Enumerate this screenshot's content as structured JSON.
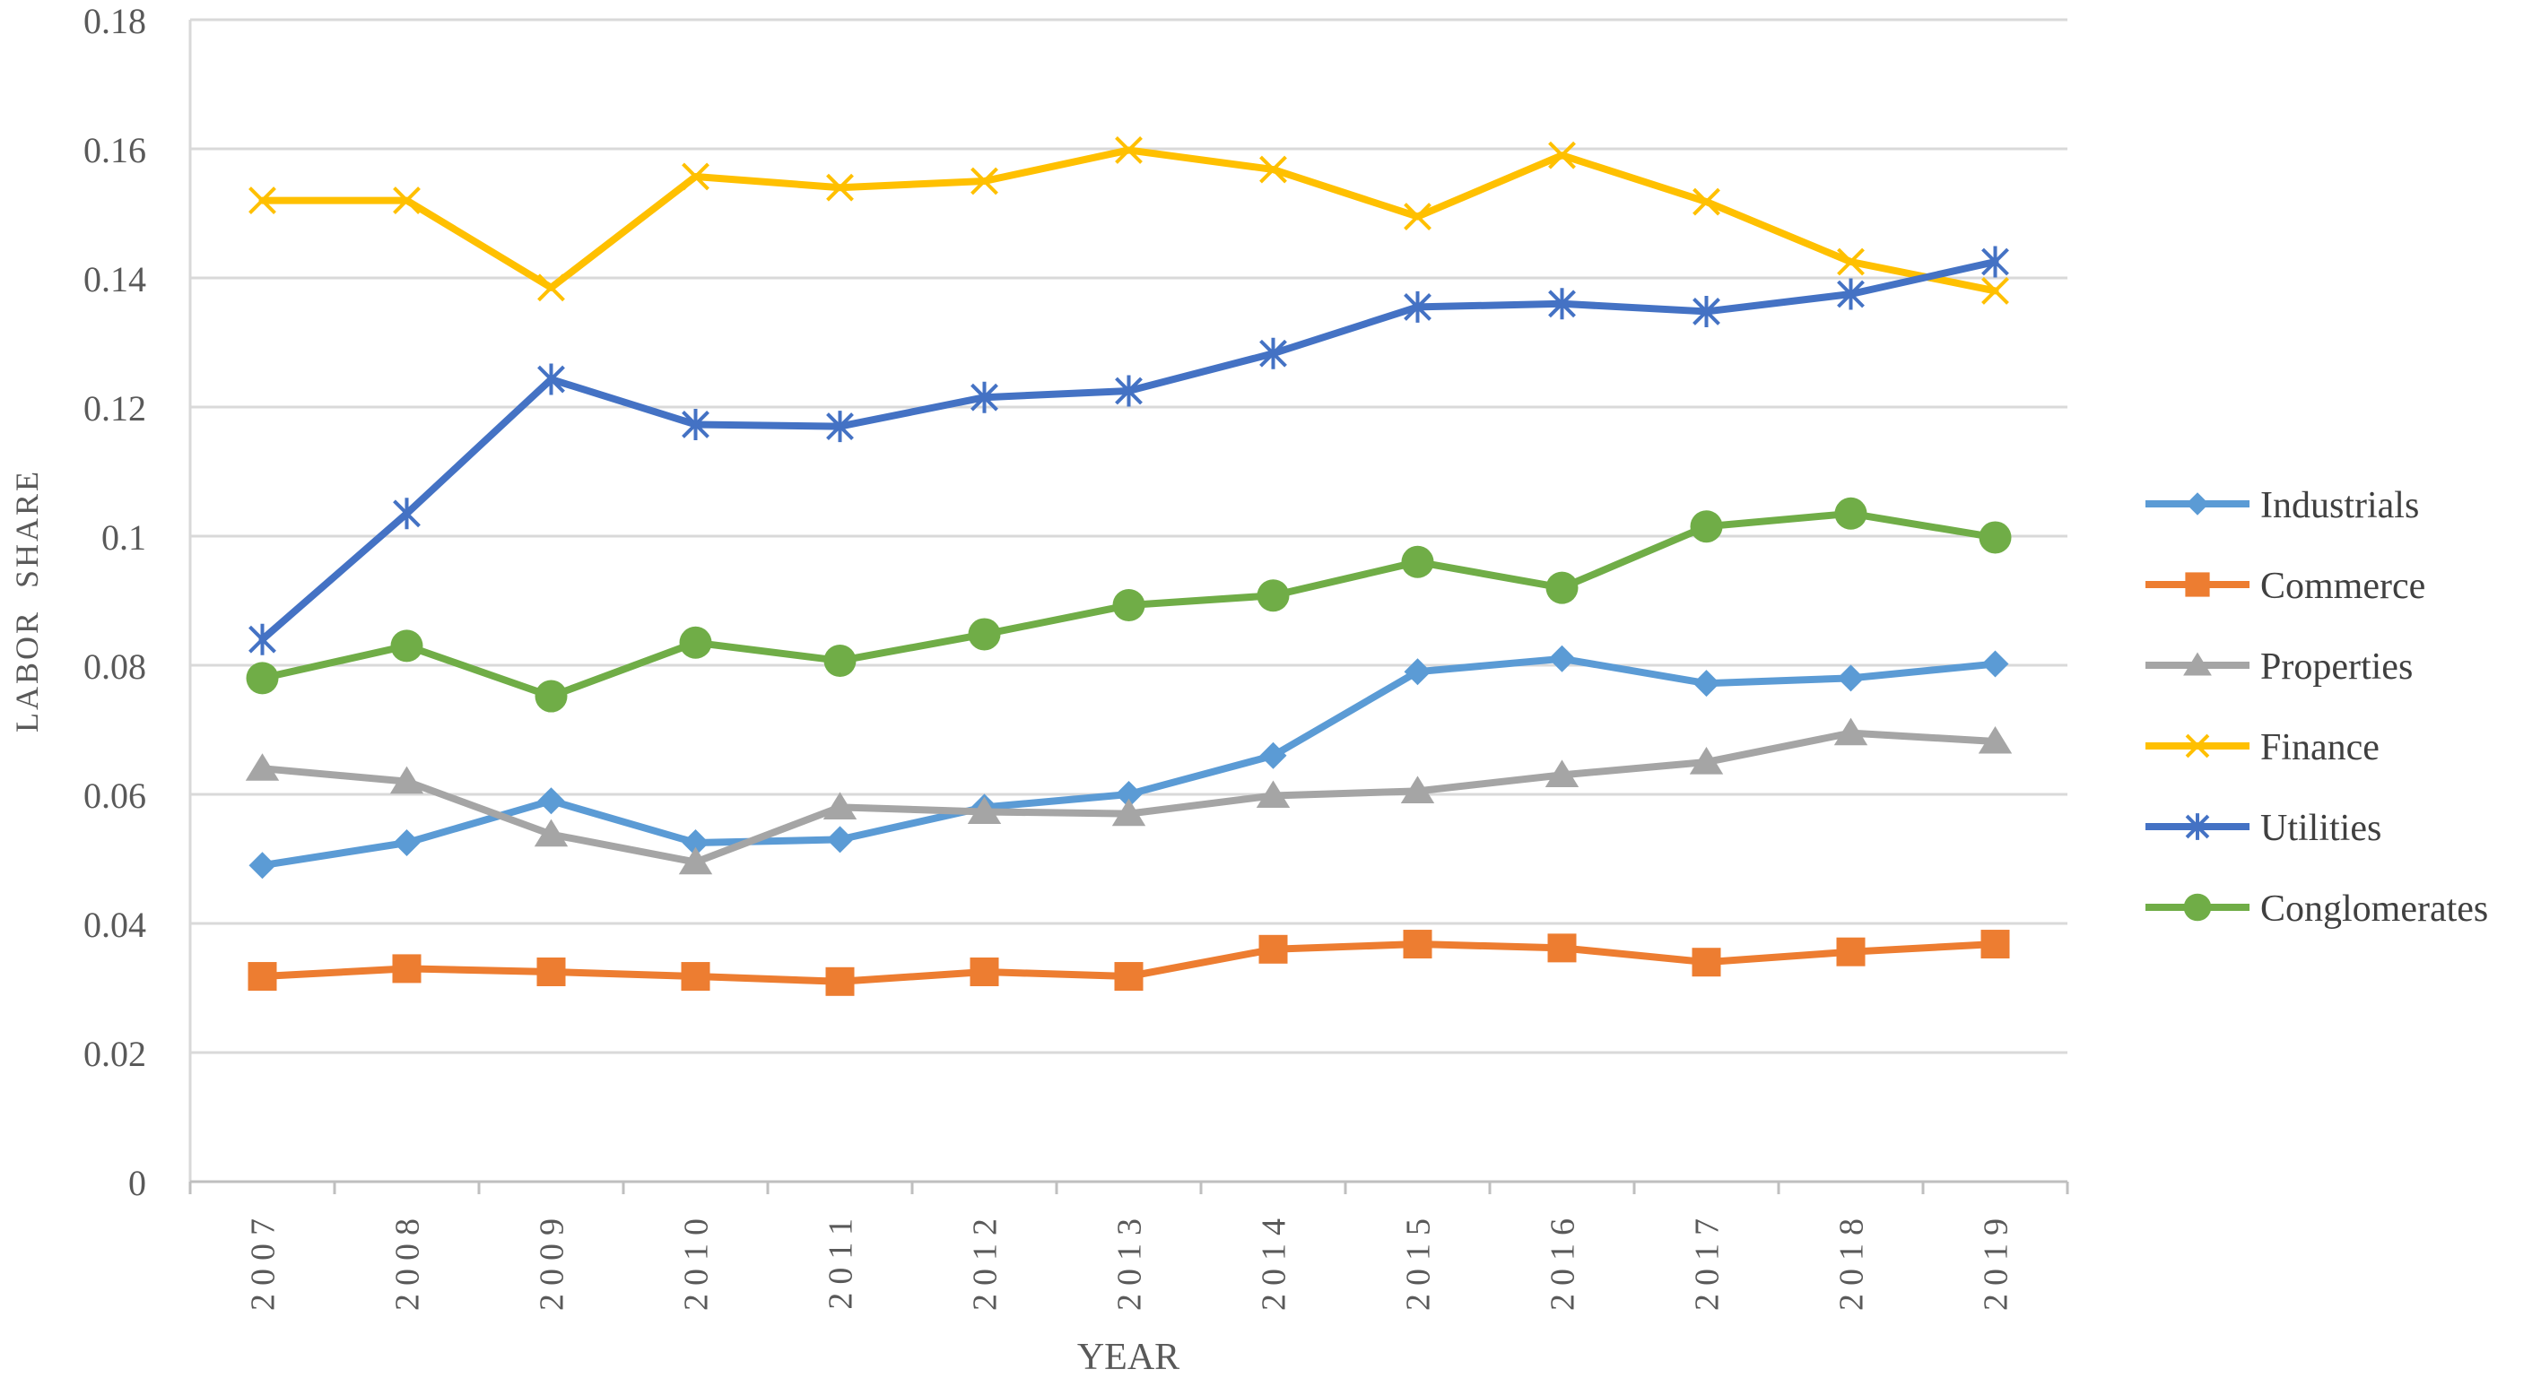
{
  "chart_data": {
    "type": "line",
    "title": "",
    "xlabel": "YEAR",
    "ylabel": "LABOR  SHARE",
    "ylim": [
      0,
      0.18
    ],
    "yticks": [
      "0",
      "0.02",
      "0.04",
      "0.06",
      "0.08",
      "0.1",
      "0.12",
      "0.14",
      "0.16",
      "0.18"
    ],
    "grid": "horizontal",
    "legend_position": "right",
    "categories": [
      "2007",
      "2008",
      "2009",
      "2010",
      "2011",
      "2012",
      "2013",
      "2014",
      "2015",
      "2016",
      "2017",
      "2018",
      "2019"
    ],
    "series": [
      {
        "name": "Industrials",
        "color": "#5b9bd5",
        "marker": "diamond",
        "values": [
          0.049,
          0.0525,
          0.059,
          0.0525,
          0.053,
          0.058,
          0.06,
          0.066,
          0.079,
          0.081,
          0.0772,
          0.078,
          0.0802
        ]
      },
      {
        "name": "Commerce",
        "color": "#ed7d31",
        "marker": "square",
        "values": [
          0.0318,
          0.033,
          0.0325,
          0.0318,
          0.031,
          0.0325,
          0.0318,
          0.036,
          0.0368,
          0.0362,
          0.034,
          0.0356,
          0.0368
        ]
      },
      {
        "name": "Properties",
        "color": "#a5a5a5",
        "marker": "triangle",
        "values": [
          0.064,
          0.062,
          0.0538,
          0.0495,
          0.058,
          0.0573,
          0.057,
          0.0598,
          0.0605,
          0.063,
          0.065,
          0.0695,
          0.0682
        ]
      },
      {
        "name": "Finance",
        "color": "#ffc000",
        "marker": "x",
        "values": [
          0.152,
          0.152,
          0.1385,
          0.1557,
          0.154,
          0.155,
          0.1598,
          0.1568,
          0.1495,
          0.159,
          0.1518,
          0.1425,
          0.138
        ]
      },
      {
        "name": "Utilities",
        "color": "#4472c4",
        "marker": "star",
        "values": [
          0.084,
          0.1035,
          0.1243,
          0.1173,
          0.117,
          0.1215,
          0.1225,
          0.1283,
          0.1355,
          0.136,
          0.1348,
          0.1375,
          0.1425
        ]
      },
      {
        "name": "Conglomerates",
        "color": "#70ad47",
        "marker": "circle",
        "values": [
          0.078,
          0.083,
          0.0752,
          0.0835,
          0.0807,
          0.0848,
          0.0893,
          0.0908,
          0.096,
          0.092,
          0.1015,
          0.1035,
          0.0998
        ]
      }
    ]
  }
}
